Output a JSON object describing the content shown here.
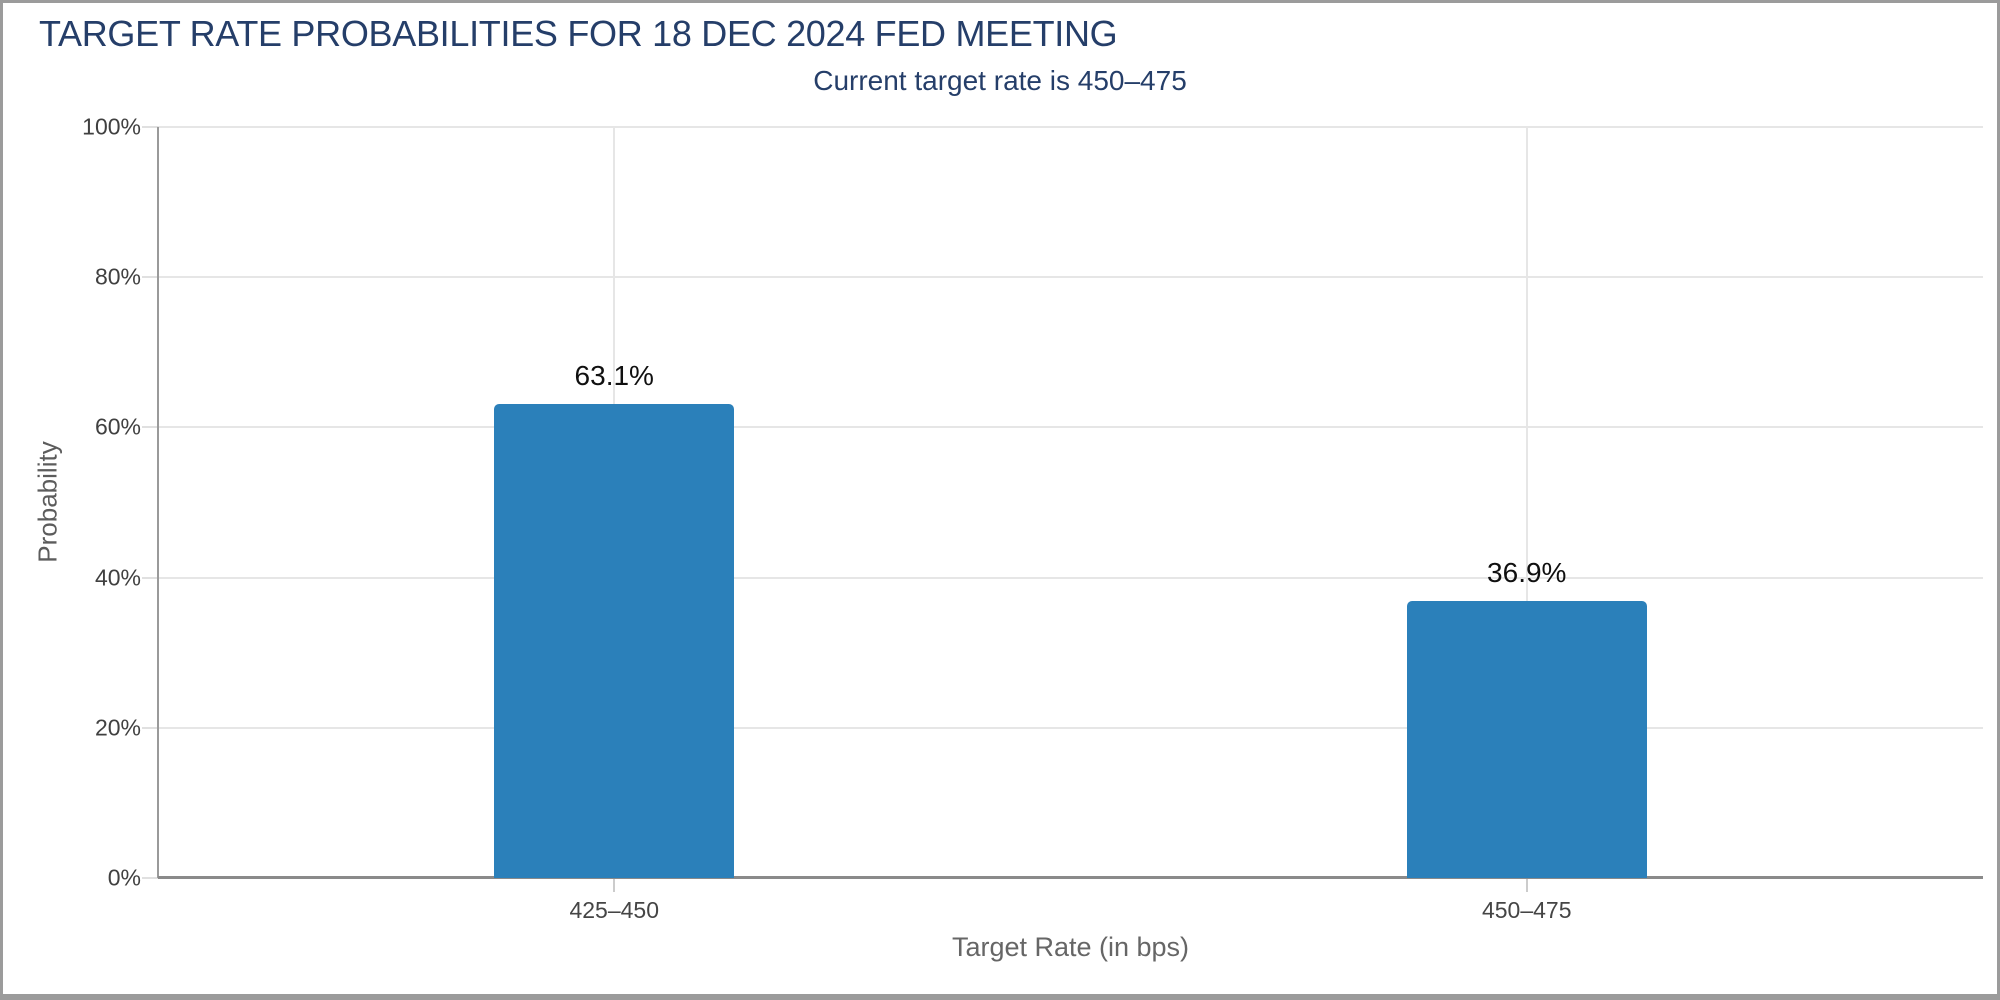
{
  "page": {
    "title": "TARGET RATE PROBABILITIES FOR 18 DEC 2024 FED MEETING",
    "subtitle": "Current target rate is 450–475"
  },
  "chart_data": {
    "type": "bar",
    "title": "TARGET RATE PROBABILITIES FOR 18 DEC 2024 FED MEETING",
    "subtitle": "Current target rate is 450–475",
    "categories": [
      "425–450",
      "450–475"
    ],
    "values": [
      63.1,
      36.9
    ],
    "value_labels": [
      "63.1%",
      "36.9%"
    ],
    "xlabel": "Target Rate (in bps)",
    "ylabel": "Probability",
    "ylim": [
      0,
      100
    ],
    "yticks": [
      0,
      20,
      40,
      60,
      80,
      100
    ],
    "ytick_labels": [
      "0%",
      "20%",
      "40%",
      "60%",
      "80%",
      "100%"
    ],
    "grid": true,
    "legend_position": "none",
    "bar_color": "#2b80ba",
    "title_color": "#253e69",
    "axis_line_color": "#9a9a9a",
    "gridline_color": "#e6e6e6"
  }
}
